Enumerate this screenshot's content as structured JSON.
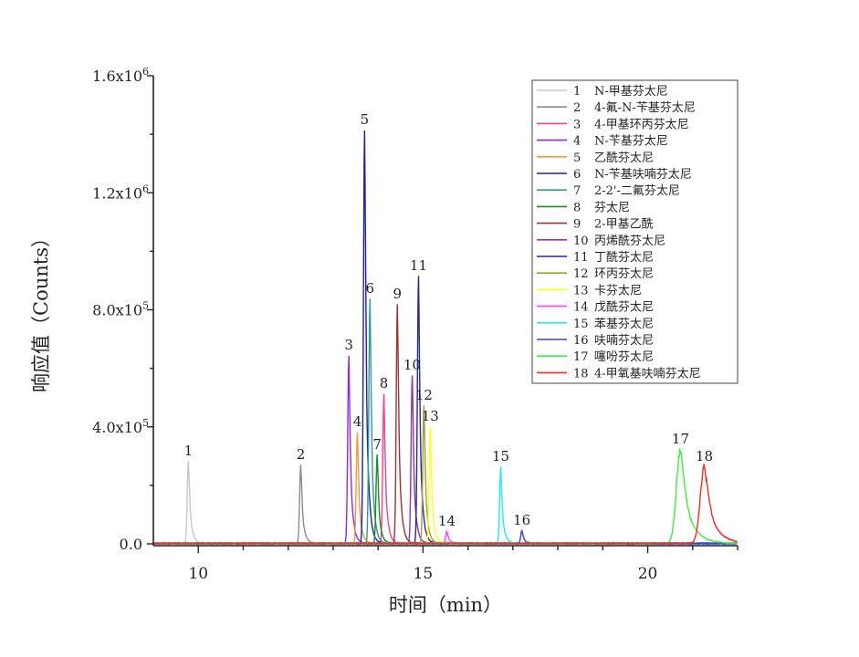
{
  "chart_data": {
    "type": "line",
    "xlabel": "时间（min）",
    "ylabel": "响应值（Counts）",
    "xlim": [
      9,
      22
    ],
    "ylim": [
      0,
      1600000
    ],
    "x_ticks": [
      {
        "value": 10,
        "label": "10"
      },
      {
        "value": 15,
        "label": "15"
      },
      {
        "value": 20,
        "label": "20"
      }
    ],
    "y_ticks": [
      {
        "value": 0,
        "label": "0.0",
        "exp": ""
      },
      {
        "value": 400000,
        "label": "4.0x10",
        "exp": "5"
      },
      {
        "value": 800000,
        "label": "8.0x10",
        "exp": "5"
      },
      {
        "value": 1200000,
        "label": "1.2x10",
        "exp": "6"
      },
      {
        "value": 1600000,
        "label": "1.6x10",
        "exp": "6"
      }
    ],
    "grid": false,
    "legend_position": "top-right",
    "series": [
      {
        "id": "1",
        "name": "N-甲基芬太尼",
        "color": "#c8c8c8",
        "peak_time": 9.78,
        "peak_height": 281000
      },
      {
        "id": "2",
        "name": "4-氟-N-苄基芬太尼",
        "color": "#8c8c8c",
        "peak_time": 12.28,
        "peak_height": 268000
      },
      {
        "id": "3",
        "name": "4-甲基环丙芬太尼",
        "color": "#ff3c8c",
        "peak_time": 14.13,
        "peak_height": 511000
      },
      {
        "id": "4",
        "name": "N-苄基芬太尼",
        "color": "#8c28ff",
        "peak_time": 13.35,
        "peak_height": 642000
      },
      {
        "id": "5",
        "name": "乙酰芬太尼",
        "color": "#ff9632",
        "peak_time": 13.54,
        "peak_height": 380000
      },
      {
        "id": "6",
        "name": "N-苄基呋喃芬太尼",
        "color": "#1e1eb4",
        "peak_time": 13.7,
        "peak_height": 1413000
      },
      {
        "id": "7",
        "name": "2-2'-二氟芬太尼",
        "color": "#28a096",
        "peak_time": 13.82,
        "peak_height": 836000
      },
      {
        "id": "8",
        "name": "芬太尼",
        "color": "#1e8c1e",
        "peak_time": 13.98,
        "peak_height": 303000
      },
      {
        "id": "9",
        "name": "2-甲基乙酰",
        "color": "#a03232",
        "peak_time": 14.43,
        "peak_height": 817000
      },
      {
        "id": "10",
        "name": "丙烯酰芬太尼",
        "color": "#9632aa",
        "peak_time": 14.76,
        "peak_height": 574000
      },
      {
        "id": "11",
        "name": "丁酰芬太尼",
        "color": "#2828a0",
        "peak_time": 14.9,
        "peak_height": 914000
      },
      {
        "id": "12",
        "name": "环丙芬太尼",
        "color": "#a0a032",
        "peak_time": 15.02,
        "peak_height": 471000
      },
      {
        "id": "13",
        "name": "卡芬太尼",
        "color": "#ffff1e",
        "peak_time": 15.16,
        "peak_height": 399000
      },
      {
        "id": "14",
        "name": "戊酰芬太尼",
        "color": "#ff3cff",
        "peak_time": 15.53,
        "peak_height": 41000
      },
      {
        "id": "15",
        "name": "苯基芬太尼",
        "color": "#1ef0f0",
        "peak_time": 16.73,
        "peak_height": 262000
      },
      {
        "id": "16",
        "name": "呋喃芬太尼",
        "color": "#3c3cf0",
        "peak_time": 17.2,
        "peak_height": 44000
      },
      {
        "id": "17",
        "name": "噻吩芬太尼",
        "color": "#3cf03c",
        "peak_time": 20.73,
        "peak_height": 321000
      },
      {
        "id": "18",
        "name": "4-甲氧基呋喃芬太尼",
        "color": "#ff2828",
        "peak_time": 21.26,
        "peak_height": 262000
      }
    ],
    "peak_labels": [
      {
        "text": "1",
        "x": 9.78,
        "y": 281000
      },
      {
        "text": "2",
        "x": 12.28,
        "y": 268000
      },
      {
        "text": "3",
        "x": 13.35,
        "y": 642000
      },
      {
        "text": "4",
        "x": 13.54,
        "y": 380000
      },
      {
        "text": "5",
        "x": 13.7,
        "y": 1413000
      },
      {
        "text": "6",
        "x": 13.82,
        "y": 836000
      },
      {
        "text": "7",
        "x": 13.98,
        "y": 303000
      },
      {
        "text": "8",
        "x": 14.13,
        "y": 511000
      },
      {
        "text": "9",
        "x": 14.43,
        "y": 817000
      },
      {
        "text": "10",
        "x": 14.76,
        "y": 574000
      },
      {
        "text": "11",
        "x": 14.9,
        "y": 914000
      },
      {
        "text": "12",
        "x": 15.02,
        "y": 471000
      },
      {
        "text": "13",
        "x": 15.16,
        "y": 399000
      },
      {
        "text": "14",
        "x": 15.53,
        "y": 41000
      },
      {
        "text": "15",
        "x": 16.73,
        "y": 262000
      },
      {
        "text": "16",
        "x": 17.2,
        "y": 44000
      },
      {
        "text": "17",
        "x": 20.73,
        "y": 321000
      },
      {
        "text": "18",
        "x": 21.26,
        "y": 262000
      }
    ]
  }
}
